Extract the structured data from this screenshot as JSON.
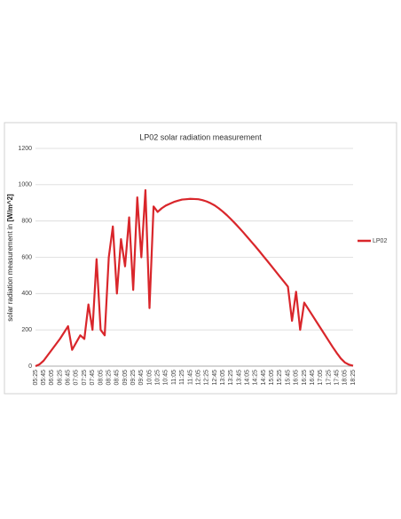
{
  "chart_data": {
    "type": "line",
    "title": "LP02 solar radiation measurement",
    "y_label": "solar radiation measurement in",
    "y_label_unit": "[W/m^2]",
    "categories": [
      "05:25",
      null,
      "05:45",
      null,
      "06:05",
      null,
      "06:25",
      null,
      "06:45",
      null,
      "07:05",
      null,
      "07:25",
      null,
      "07:45",
      null,
      "08:05",
      null,
      "08:25",
      null,
      "08:45",
      null,
      "09:05",
      null,
      "09:25",
      null,
      "09:45",
      null,
      "10:05",
      null,
      "10:25",
      null,
      "10:45",
      null,
      "11:05",
      null,
      "11:25",
      null,
      "11:45",
      null,
      "12:05",
      null,
      "12:25",
      null,
      "12:45",
      null,
      "13:05",
      null,
      "13:25",
      null,
      "13:45",
      null,
      "14:05",
      null,
      "14:25",
      null,
      "14:45",
      null,
      "15:05",
      null,
      "15:25",
      null,
      "15:45",
      null,
      "16:05",
      null,
      "16:25",
      null,
      "16:45",
      null,
      "17:05",
      null,
      "17:25",
      null,
      "17:45",
      null,
      "18:05",
      null,
      "18:25"
    ],
    "series": [
      {
        "name": "LP02",
        "color": "#d9262b",
        "values": [
          0,
          10,
          30,
          60,
          90,
          120,
          150,
          185,
          220,
          90,
          130,
          170,
          150,
          340,
          200,
          590,
          200,
          170,
          600,
          770,
          400,
          700,
          550,
          820,
          420,
          930,
          600,
          970,
          320,
          880,
          850,
          870,
          885,
          895,
          905,
          912,
          918,
          920,
          922,
          921,
          920,
          915,
          908,
          898,
          886,
          870,
          852,
          832,
          810,
          787,
          763,
          738,
          712,
          686,
          660,
          633,
          605,
          578,
          550,
          522,
          494,
          466,
          438,
          250,
          410,
          200,
          350,
          315,
          280,
          245,
          210,
          175,
          140,
          105,
          72,
          42,
          20,
          8,
          2
        ]
      }
    ],
    "ylim": [
      0,
      1200
    ],
    "yticks": [
      0,
      200,
      400,
      600,
      800,
      1000,
      1200
    ],
    "grid": true,
    "legend": "right"
  }
}
